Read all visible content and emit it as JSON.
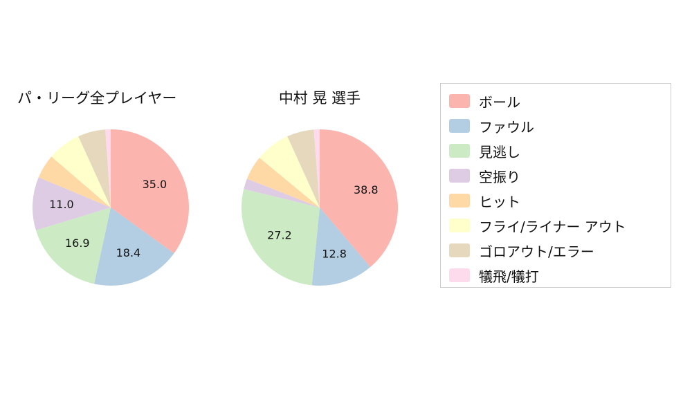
{
  "legend": {
    "items": [
      {
        "label": "ボール",
        "color": "#fbb4ae"
      },
      {
        "label": "ファウル",
        "color": "#b3cde3"
      },
      {
        "label": "見逃し",
        "color": "#ccebc5"
      },
      {
        "label": "空振り",
        "color": "#decbe4"
      },
      {
        "label": "ヒット",
        "color": "#fed9a6"
      },
      {
        "label": "フライ/ライナー アウト",
        "color": "#ffffcc"
      },
      {
        "label": "ゴロアウト/エラー",
        "color": "#e5d8bd"
      },
      {
        "label": "犠飛/犠打",
        "color": "#fddaec"
      }
    ]
  },
  "chart_data": [
    {
      "type": "pie",
      "title": "パ・リーグ全プレイヤー",
      "labels": [
        "ボール",
        "ファウル",
        "見逃し",
        "空振り",
        "ヒット",
        "フライ/ライナー アウト",
        "ゴロアウト/エラー",
        "犠飛/犠打"
      ],
      "values": [
        35.0,
        18.4,
        16.9,
        11.0,
        5.0,
        6.9,
        5.7,
        1.1
      ],
      "colors": [
        "#fbb4ae",
        "#b3cde3",
        "#ccebc5",
        "#decbe4",
        "#fed9a6",
        "#ffffcc",
        "#e5d8bd",
        "#fddaec"
      ],
      "shown_value_labels": [
        "35.0",
        "18.4",
        "16.9",
        "11.0"
      ],
      "label_threshold": 10,
      "start": "top",
      "direction": "clockwise",
      "legend_position": "right"
    },
    {
      "type": "pie",
      "title": "中村 晃  選手",
      "labels": [
        "ボール",
        "ファウル",
        "見逃し",
        "空振り",
        "ヒット",
        "フライ/ライナー アウト",
        "ゴロアウト/エラー",
        "犠飛/犠打"
      ],
      "values": [
        38.8,
        12.8,
        27.2,
        2.2,
        5.0,
        7.2,
        5.6,
        1.2
      ],
      "colors": [
        "#fbb4ae",
        "#b3cde3",
        "#ccebc5",
        "#decbe4",
        "#fed9a6",
        "#ffffcc",
        "#e5d8bd",
        "#fddaec"
      ],
      "shown_value_labels": [
        "38.8",
        "12.8",
        "27.2"
      ],
      "label_threshold": 10,
      "start": "top",
      "direction": "clockwise",
      "legend_position": "right"
    }
  ],
  "pie_label_style": {
    "font_size": 16,
    "color": "#111111"
  }
}
